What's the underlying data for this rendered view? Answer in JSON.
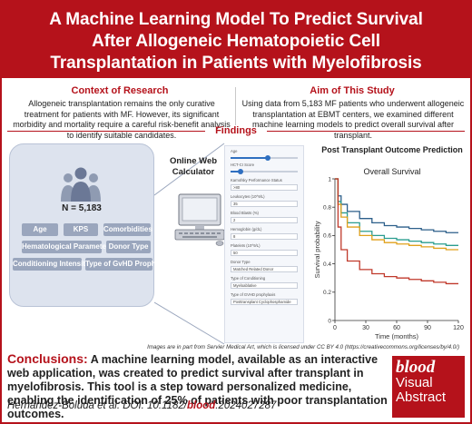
{
  "header": {
    "title": "A Machine Learning Model To Predict Survival After Allogeneic Hematopoietic Cell Transplantation in Patients with Myelofibrosis"
  },
  "context": {
    "title": "Context of Research",
    "text": "Allogeneic transplantation remains the only curative treatment for patients with MF. However, its significant morbidity and mortality require a careful risk-benefit analysis to identify suitable candidates."
  },
  "aim": {
    "title": "Aim of This Study",
    "text": "Using data from 5,183 MF patients who underwent allogeneic transplantation at EBMT centers, we examined different machine learning models to predict overall survival after transplant."
  },
  "findings": {
    "title": "Findings",
    "n_label": "N = 5,183",
    "features": [
      "Age",
      "KPS",
      "Comorbidities",
      "Hematological Parameters",
      "Donor Type",
      "Conditioning Intensity",
      "Type of GvHD Prophylaxis"
    ],
    "calculator_label": "Online Web Calculator"
  },
  "form": {
    "age_label": "Age",
    "hct_label": "HCT-CI Score",
    "kps_label": "Karnofsky Performance Status",
    "kps_value": ">80",
    "leuk_label": "Leukocytes (10^9/L)",
    "leuk_value": "35",
    "blasts_label": "Blood Blasts (%)",
    "blasts_value": "2",
    "hgb_label": "Hemoglobin (g/dL)",
    "hgb_value": "8",
    "plt_label": "Platelets (10^9/L)",
    "plt_value": "50",
    "donor_label": "Donor Type",
    "donor_value": "Matched Related Donor",
    "cond_label": "Type of Conditioning",
    "cond_value": "Myeloablative",
    "gvhd_label": "Type of GVHD prophylaxis",
    "gvhd_value": "Posttransplant Cyclophosphamide",
    "age_fraction": 0.55,
    "hct_fraction": 0.15
  },
  "chart": {
    "title": "Post Transplant Outcome Prediction",
    "subtitle": "Overall Survival"
  },
  "chart_data": {
    "type": "line",
    "title": "Post Transplant Outcome Prediction",
    "subtitle": "Overall Survival",
    "xlabel": "Time (months)",
    "ylabel": "Survival probability",
    "xlim": [
      0,
      120
    ],
    "ylim": [
      0,
      1
    ],
    "xticks": [
      0,
      30,
      60,
      90,
      120
    ],
    "yticks": [
      0,
      0.2,
      0.4,
      0.6,
      0.8,
      1
    ],
    "series": [
      {
        "color": "#2c5f8a",
        "x": [
          0,
          3,
          6,
          12,
          24,
          36,
          48,
          60,
          72,
          84,
          96,
          108,
          120
        ],
        "y": [
          1,
          0.88,
          0.82,
          0.77,
          0.72,
          0.69,
          0.67,
          0.66,
          0.65,
          0.64,
          0.63,
          0.62,
          0.62
        ]
      },
      {
        "color": "#2a9d8f",
        "x": [
          0,
          3,
          6,
          12,
          24,
          36,
          48,
          60,
          72,
          84,
          96,
          108,
          120
        ],
        "y": [
          1,
          0.84,
          0.76,
          0.69,
          0.63,
          0.6,
          0.58,
          0.57,
          0.56,
          0.55,
          0.54,
          0.53,
          0.53
        ]
      },
      {
        "color": "#e0a11b",
        "x": [
          0,
          3,
          6,
          12,
          24,
          36,
          48,
          60,
          72,
          84,
          96,
          108,
          120
        ],
        "y": [
          1,
          0.82,
          0.73,
          0.66,
          0.6,
          0.57,
          0.55,
          0.54,
          0.53,
          0.52,
          0.51,
          0.5,
          0.5
        ]
      },
      {
        "color": "#c0392b",
        "x": [
          0,
          3,
          6,
          12,
          24,
          36,
          48,
          60,
          72,
          84,
          96,
          108,
          120
        ],
        "y": [
          1,
          0.66,
          0.5,
          0.42,
          0.36,
          0.33,
          0.31,
          0.3,
          0.29,
          0.28,
          0.27,
          0.26,
          0.26
        ]
      }
    ]
  },
  "credit": {
    "text": "Images are in part  from Servier Medical Art, which is licensed under CC BY 4.0 (https://creativecommons.org/licenses/by/4.0/)"
  },
  "conclusions": {
    "label": "Conclusions:",
    "text": "A machine learning model, available as an interactive web application, was created to predict survival after transplant in myelofibrosis. This tool is a step toward personalized medicine, enabling the identification of 25% of patients with poor transplantation outcomes."
  },
  "citation": {
    "text": "Hernández-Boluda et al. DOI: 10.1182/",
    "journal": "blood",
    "doi_suffix": ".2024027287"
  },
  "badge": {
    "logo": "blood",
    "line1": "Visual",
    "line2": "Abstract"
  },
  "colors": {
    "brand_red": "#b5121b",
    "chip": "#9aa6bd",
    "panel": "#dde3ee"
  }
}
